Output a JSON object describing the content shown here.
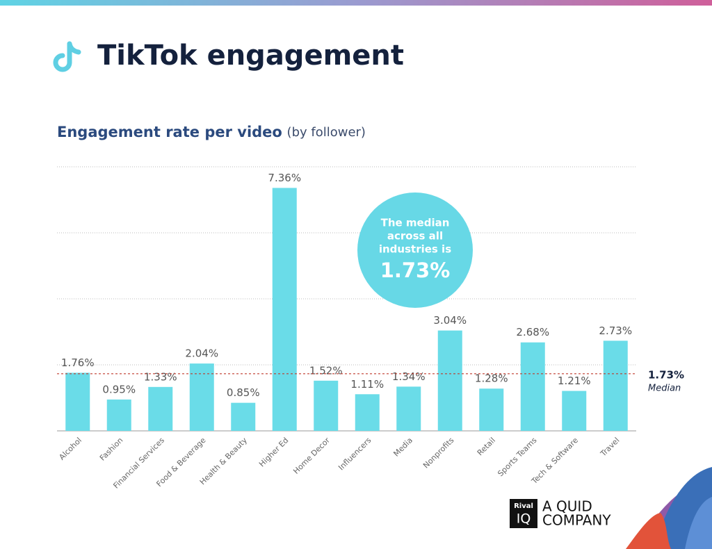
{
  "chart_data": {
    "type": "bar",
    "title": "TikTok engagement",
    "subtitle": "Engagement rate per video",
    "subtitle_note": "(by follower)",
    "categories": [
      "Alcohol",
      "Fashion",
      "Financial Services",
      "Food & Beverage",
      "Health & Beauty",
      "Higher Ed",
      "Home Decor",
      "Influencers",
      "Media",
      "Nonprofits",
      "Retail",
      "Sports Teams",
      "Tech & Software",
      "Travel"
    ],
    "values": [
      1.76,
      0.95,
      1.33,
      2.04,
      0.85,
      7.36,
      1.52,
      1.11,
      1.34,
      3.04,
      1.28,
      2.68,
      1.21,
      2.73
    ],
    "value_labels": [
      "1.76%",
      "0.95%",
      "1.33%",
      "2.04%",
      "0.85%",
      "7.36%",
      "1.52%",
      "1.11%",
      "1.34%",
      "3.04%",
      "1.28%",
      "2.68%",
      "1.21%",
      "2.73%"
    ],
    "color": "#6adce8",
    "ylim": [
      0,
      8
    ],
    "yticks": [
      2,
      4,
      6,
      8
    ],
    "grid": true,
    "median": 1.73,
    "median_label": "1.73%",
    "median_text": "Median",
    "median_color": "#c0392b",
    "callout": {
      "lines": [
        "The median",
        "across all",
        "industries is"
      ],
      "value_label": "1.73%"
    },
    "brand": {
      "box": [
        "Rival",
        "IQ"
      ],
      "tagline": [
        "A QUID",
        "COMPANY"
      ]
    }
  }
}
